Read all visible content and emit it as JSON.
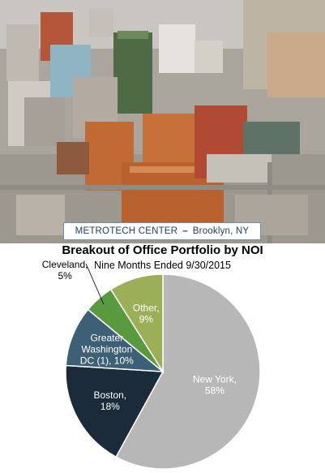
{
  "photo": {
    "caption_place": "METROTECH CENTER",
    "caption_separator": "–",
    "caption_city": "Brooklyn, NY"
  },
  "chart_data": {
    "type": "pie",
    "title": "Breakout of Office Portfolio by NOI",
    "subtitle": "Nine Months Ended 9/30/2015",
    "slices": [
      {
        "name": "New York",
        "value": 58,
        "label_lines": [
          "New York,",
          "58%"
        ],
        "color": "#b7b7b7",
        "text_color": "#ffffff"
      },
      {
        "name": "Boston",
        "value": 18,
        "label_lines": [
          "Boston,",
          "18%"
        ],
        "color": "#1b2b3a",
        "text_color": "#ffffff"
      },
      {
        "name": "Greater Washington DC (1)",
        "value": 10,
        "label_lines": [
          "Greater",
          "Washington",
          "DC (1), 10%"
        ],
        "color": "#3d6076",
        "text_color": "#ffffff"
      },
      {
        "name": "Cleveland",
        "value": 5,
        "label_lines": [
          "Cleveland,",
          "5%"
        ],
        "color": "#5a9a3e",
        "text_color": "#000000"
      },
      {
        "name": "Other",
        "value": 9,
        "label_lines": [
          "Other,",
          "9%"
        ],
        "color": "#9caf58",
        "text_color": "#ffffff"
      }
    ],
    "legend": "none"
  }
}
